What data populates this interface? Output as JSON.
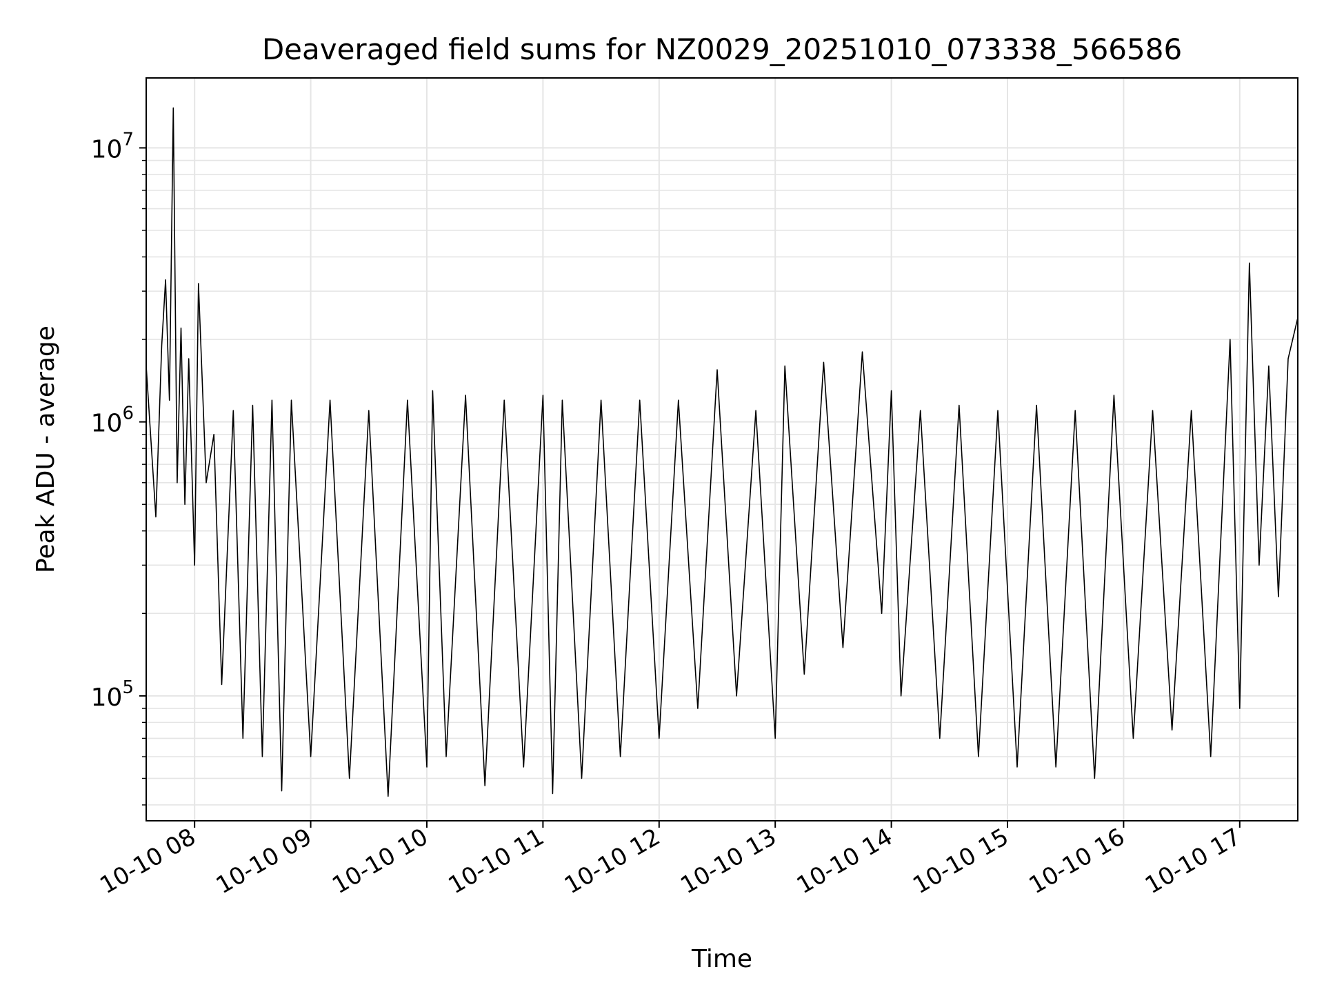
{
  "chart_data": {
    "type": "line",
    "title": "Deaveraged field sums for NZ0029_20251010_073338_566586",
    "xlabel": "Time",
    "ylabel": "Peak ADU - average",
    "yscale": "log",
    "ylim": [
      35000,
      18000000
    ],
    "xlim": [
      "2025-10-10 07:35",
      "2025-10-10 17:30"
    ],
    "grid": true,
    "line_color": "#000000",
    "x_ticks": [
      {
        "label": "10-10 08",
        "x": "2025-10-10 08:00"
      },
      {
        "label": "10-10 09",
        "x": "2025-10-10 09:00"
      },
      {
        "label": "10-10 10",
        "x": "2025-10-10 10:00"
      },
      {
        "label": "10-10 11",
        "x": "2025-10-10 11:00"
      },
      {
        "label": "10-10 12",
        "x": "2025-10-10 12:00"
      },
      {
        "label": "10-10 13",
        "x": "2025-10-10 13:00"
      },
      {
        "label": "10-10 14",
        "x": "2025-10-10 14:00"
      },
      {
        "label": "10-10 15",
        "x": "2025-10-10 15:00"
      },
      {
        "label": "10-10 16",
        "x": "2025-10-10 16:00"
      },
      {
        "label": "10-10 17",
        "x": "2025-10-10 17:00"
      }
    ],
    "y_ticks": [
      {
        "base": "10",
        "exp": "5",
        "value": 100000
      },
      {
        "base": "10",
        "exp": "6",
        "value": 1000000
      },
      {
        "base": "10",
        "exp": "7",
        "value": 10000000
      }
    ],
    "series": [
      {
        "name": "",
        "points": [
          [
            "2025-10-10 07:35",
            1600000
          ],
          [
            "2025-10-10 07:40",
            450000
          ],
          [
            "2025-10-10 07:43",
            1900000
          ],
          [
            "2025-10-10 07:45",
            3300000
          ],
          [
            "2025-10-10 07:47",
            1200000
          ],
          [
            "2025-10-10 07:49",
            14000000
          ],
          [
            "2025-10-10 07:51",
            600000
          ],
          [
            "2025-10-10 07:53",
            2200000
          ],
          [
            "2025-10-10 07:55",
            500000
          ],
          [
            "2025-10-10 07:57",
            1700000
          ],
          [
            "2025-10-10 08:00",
            300000
          ],
          [
            "2025-10-10 08:02",
            3200000
          ],
          [
            "2025-10-10 08:06",
            600000
          ],
          [
            "2025-10-10 08:10",
            900000
          ],
          [
            "2025-10-10 08:14",
            110000
          ],
          [
            "2025-10-10 08:20",
            1100000
          ],
          [
            "2025-10-10 08:25",
            70000
          ],
          [
            "2025-10-10 08:30",
            1150000
          ],
          [
            "2025-10-10 08:35",
            60000
          ],
          [
            "2025-10-10 08:40",
            1200000
          ],
          [
            "2025-10-10 08:45",
            45000
          ],
          [
            "2025-10-10 08:50",
            1200000
          ],
          [
            "2025-10-10 09:00",
            60000
          ],
          [
            "2025-10-10 09:10",
            1200000
          ],
          [
            "2025-10-10 09:20",
            50000
          ],
          [
            "2025-10-10 09:30",
            1100000
          ],
          [
            "2025-10-10 09:40",
            43000
          ],
          [
            "2025-10-10 09:50",
            1200000
          ],
          [
            "2025-10-10 10:00",
            55000
          ],
          [
            "2025-10-10 10:03",
            1300000
          ],
          [
            "2025-10-10 10:10",
            60000
          ],
          [
            "2025-10-10 10:20",
            1250000
          ],
          [
            "2025-10-10 10:30",
            47000
          ],
          [
            "2025-10-10 10:40",
            1200000
          ],
          [
            "2025-10-10 10:50",
            55000
          ],
          [
            "2025-10-10 11:00",
            1250000
          ],
          [
            "2025-10-10 11:05",
            44000
          ],
          [
            "2025-10-10 11:10",
            1200000
          ],
          [
            "2025-10-10 11:20",
            50000
          ],
          [
            "2025-10-10 11:30",
            1200000
          ],
          [
            "2025-10-10 11:40",
            60000
          ],
          [
            "2025-10-10 11:50",
            1200000
          ],
          [
            "2025-10-10 12:00",
            70000
          ],
          [
            "2025-10-10 12:10",
            1200000
          ],
          [
            "2025-10-10 12:20",
            90000
          ],
          [
            "2025-10-10 12:30",
            1550000
          ],
          [
            "2025-10-10 12:40",
            100000
          ],
          [
            "2025-10-10 12:50",
            1100000
          ],
          [
            "2025-10-10 13:00",
            70000
          ],
          [
            "2025-10-10 13:05",
            1600000
          ],
          [
            "2025-10-10 13:15",
            120000
          ],
          [
            "2025-10-10 13:25",
            1650000
          ],
          [
            "2025-10-10 13:35",
            150000
          ],
          [
            "2025-10-10 13:45",
            1800000
          ],
          [
            "2025-10-10 13:55",
            200000
          ],
          [
            "2025-10-10 14:00",
            1300000
          ],
          [
            "2025-10-10 14:05",
            100000
          ],
          [
            "2025-10-10 14:15",
            1100000
          ],
          [
            "2025-10-10 14:25",
            70000
          ],
          [
            "2025-10-10 14:35",
            1150000
          ],
          [
            "2025-10-10 14:45",
            60000
          ],
          [
            "2025-10-10 14:55",
            1100000
          ],
          [
            "2025-10-10 15:05",
            55000
          ],
          [
            "2025-10-10 15:15",
            1150000
          ],
          [
            "2025-10-10 15:25",
            55000
          ],
          [
            "2025-10-10 15:35",
            1100000
          ],
          [
            "2025-10-10 15:45",
            50000
          ],
          [
            "2025-10-10 15:55",
            1250000
          ],
          [
            "2025-10-10 16:05",
            70000
          ],
          [
            "2025-10-10 16:15",
            1100000
          ],
          [
            "2025-10-10 16:25",
            75000
          ],
          [
            "2025-10-10 16:35",
            1100000
          ],
          [
            "2025-10-10 16:45",
            60000
          ],
          [
            "2025-10-10 16:55",
            2000000
          ],
          [
            "2025-10-10 17:00",
            90000
          ],
          [
            "2025-10-10 17:05",
            3800000
          ],
          [
            "2025-10-10 17:10",
            300000
          ],
          [
            "2025-10-10 17:15",
            1600000
          ],
          [
            "2025-10-10 17:20",
            230000
          ],
          [
            "2025-10-10 17:25",
            1700000
          ],
          [
            "2025-10-10 17:30",
            2400000
          ]
        ]
      }
    ]
  }
}
